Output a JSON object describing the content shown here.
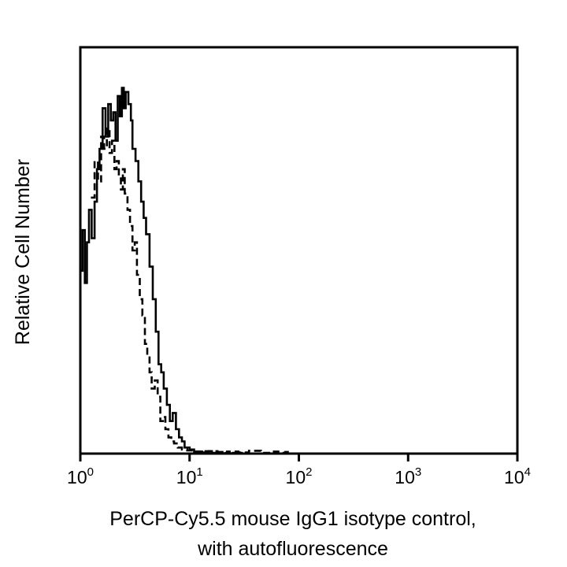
{
  "chart_data": {
    "type": "line",
    "title": "",
    "xlabel_line1": "PerCP-Cy5.5 mouse IgG1 isotype control,",
    "xlabel_line2": "with autofluorescence",
    "ylabel": "Relative Cell Number",
    "x_scale": "log",
    "xlim": [
      1,
      10000
    ],
    "ylim": [
      0,
      100
    ],
    "grid": false,
    "legend": "none",
    "x_ticks": [
      {
        "value": 1,
        "base": "10",
        "exp": "0"
      },
      {
        "value": 10,
        "base": "10",
        "exp": "1"
      },
      {
        "value": 100,
        "base": "10",
        "exp": "2"
      },
      {
        "value": 1000,
        "base": "10",
        "exp": "3"
      },
      {
        "value": 10000,
        "base": "10",
        "exp": "4"
      }
    ],
    "series": [
      {
        "name": "isotype control",
        "style": "solid",
        "x": [
          1.0,
          1.05,
          1.1,
          1.15,
          1.2,
          1.27,
          1.35,
          1.42,
          1.5,
          1.6,
          1.7,
          1.8,
          1.9,
          2.0,
          2.1,
          2.2,
          2.3,
          2.4,
          2.5,
          2.6,
          2.75,
          2.9,
          3.0,
          3.2,
          3.4,
          3.6,
          3.8,
          4.0,
          4.3,
          4.6,
          4.9,
          5.2,
          5.5,
          5.8,
          6.2,
          6.6,
          7.0,
          7.5,
          8.0,
          8.5,
          9.0,
          10.0,
          11.0,
          12.5,
          14.0,
          16.0,
          18.0,
          20.0,
          25.0,
          30.0
        ],
        "values": [
          45,
          55,
          42,
          52,
          60,
          53,
          62,
          70,
          75,
          85,
          78,
          86,
          82,
          84,
          77,
          88,
          83,
          90,
          85,
          89,
          86,
          82,
          75,
          72,
          67,
          62,
          58,
          54,
          46,
          38,
          30,
          22,
          20,
          16,
          12,
          8,
          10,
          6,
          4,
          3,
          1.5,
          1,
          0.5,
          0.3,
          0.6,
          0.2,
          0.4,
          0.1,
          0.2,
          0
        ]
      },
      {
        "name": "autofluorescence",
        "style": "dashed",
        "x": [
          1.25,
          1.35,
          1.45,
          1.55,
          1.65,
          1.75,
          1.85,
          1.95,
          2.05,
          2.15,
          2.25,
          2.35,
          2.45,
          2.55,
          2.7,
          2.85,
          3.0,
          3.15,
          3.3,
          3.5,
          3.7,
          3.9,
          4.1,
          4.3,
          4.5,
          4.8,
          5.1,
          5.4,
          5.7,
          6.0,
          6.4,
          6.8,
          7.2,
          7.8,
          8.5,
          9.5,
          11.0,
          13.0,
          15.0,
          18.0,
          22.0,
          28.0,
          35.0,
          45.0,
          55.0,
          65.0,
          75.0,
          85.0
        ],
        "values": [
          63,
          72,
          67,
          78,
          75,
          80,
          74,
          77,
          70,
          72,
          68,
          65,
          70,
          64,
          60,
          56,
          50,
          52,
          44,
          38,
          34,
          27,
          24,
          20,
          16,
          18,
          14,
          8,
          9,
          6,
          4,
          3,
          2.5,
          1.5,
          1,
          0.8,
          0.5,
          0.3,
          0.6,
          0.2,
          0.5,
          0.3,
          0.7,
          0.2,
          0.5,
          0.2,
          0.4,
          0
        ]
      }
    ]
  }
}
